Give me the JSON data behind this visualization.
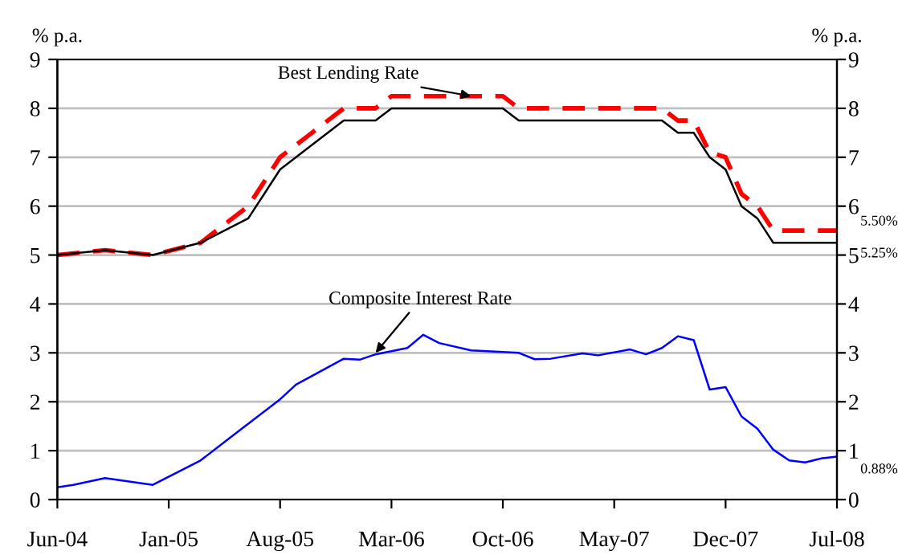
{
  "chart_data": {
    "type": "line",
    "ylabel": "% p.a.",
    "y2label": "% p.a.",
    "xlim": [
      "2004-06",
      "2008-07"
    ],
    "xticks": [
      {
        "value": "2004-06",
        "label": "Jun-04"
      },
      {
        "value": "2005-01",
        "label": "Jan-05"
      },
      {
        "value": "2005-08",
        "label": "Aug-05"
      },
      {
        "value": "2006-03",
        "label": "Mar-06"
      },
      {
        "value": "2006-10",
        "label": "Oct-06"
      },
      {
        "value": "2007-05",
        "label": "May-07"
      },
      {
        "value": "2007-12",
        "label": "Dec-07"
      },
      {
        "value": "2008-07",
        "label": "Jul-08"
      }
    ],
    "ylim": [
      0,
      9
    ],
    "yticks": [
      0,
      1,
      2,
      3,
      4,
      5,
      6,
      7,
      8,
      9
    ],
    "y2lim": [
      0,
      9
    ],
    "y2ticks": [
      0,
      1,
      2,
      3,
      4,
      5,
      6,
      7,
      8,
      9
    ],
    "grid": "y",
    "legend": false,
    "series": [
      {
        "color": "#ff0000",
        "line_style": "dashed",
        "x": [
          "2004-06",
          "2004-09",
          "2004-12",
          "2005-03",
          "2005-04",
          "2005-06",
          "2005-08",
          "2005-09",
          "2005-10",
          "2005-11",
          "2005-12",
          "2006-02",
          "2006-03",
          "2006-10",
          "2006-11",
          "2007-08",
          "2007-09",
          "2007-10",
          "2007-11",
          "2007-12",
          "2008-01",
          "2008-02",
          "2008-03",
          "2008-07"
        ],
        "values": [
          5.0,
          5.1,
          5.0,
          5.25,
          5.5,
          6.0,
          7.0,
          7.25,
          7.5,
          7.75,
          8.0,
          8.0,
          8.25,
          8.25,
          8.0,
          8.0,
          7.75,
          7.75,
          7.1,
          7.0,
          6.25,
          6.0,
          5.5,
          5.5
        ]
      },
      {
        "color": "#000000",
        "line_style": "solid",
        "x": [
          "2004-06",
          "2004-09",
          "2004-12",
          "2005-03",
          "2005-06",
          "2005-07",
          "2005-08",
          "2005-09",
          "2005-12",
          "2006-02",
          "2006-03",
          "2006-10",
          "2006-11",
          "2007-08",
          "2007-09",
          "2007-10",
          "2007-11",
          "2007-12",
          "2008-01",
          "2008-02",
          "2008-03",
          "2008-07"
        ],
        "values": [
          5.0,
          5.1,
          5.0,
          5.25,
          5.75,
          6.25,
          6.75,
          7.0,
          7.75,
          7.75,
          8.0,
          8.0,
          7.75,
          7.75,
          7.5,
          7.5,
          7.0,
          6.75,
          6.0,
          5.75,
          5.25,
          5.25
        ]
      },
      {
        "color": "#0000ff",
        "line_style": "solid",
        "x": [
          "2004-06",
          "2004-07",
          "2004-09",
          "2004-12",
          "2005-03",
          "2005-05",
          "2005-08",
          "2005-09",
          "2005-12",
          "2006-01",
          "2006-02",
          "2006-04",
          "2006-05",
          "2006-06",
          "2006-08",
          "2006-11",
          "2006-12",
          "2007-01",
          "2007-03",
          "2007-04",
          "2007-06",
          "2007-07",
          "2007-08",
          "2007-09",
          "2007-10",
          "2007-11",
          "2007-12",
          "2008-01",
          "2008-02",
          "2008-03",
          "2008-04",
          "2008-05",
          "2008-06",
          "2008-07"
        ],
        "values": [
          0.25,
          0.3,
          0.44,
          0.3,
          0.8,
          1.3,
          2.05,
          2.35,
          2.88,
          2.86,
          2.97,
          3.1,
          3.37,
          3.2,
          3.05,
          3.0,
          2.87,
          2.88,
          2.99,
          2.95,
          3.07,
          2.97,
          3.1,
          3.34,
          3.26,
          2.25,
          2.3,
          1.7,
          1.45,
          1.02,
          0.8,
          0.76,
          0.84,
          0.88
        ]
      }
    ],
    "annotations": [
      {
        "text": "Best Lending Rate",
        "x": "2006-08",
        "y": 8.25
      },
      {
        "text": "Composite Interest Rate",
        "x": "2006-02",
        "y": 3.0
      },
      {
        "text": "5.50%",
        "x": "2008-07",
        "y": 5.5
      },
      {
        "text": "5.25%",
        "x": "2008-07",
        "y": 5.25
      },
      {
        "text": "0.88%",
        "x": "2008-07",
        "y": 0.88
      }
    ]
  }
}
